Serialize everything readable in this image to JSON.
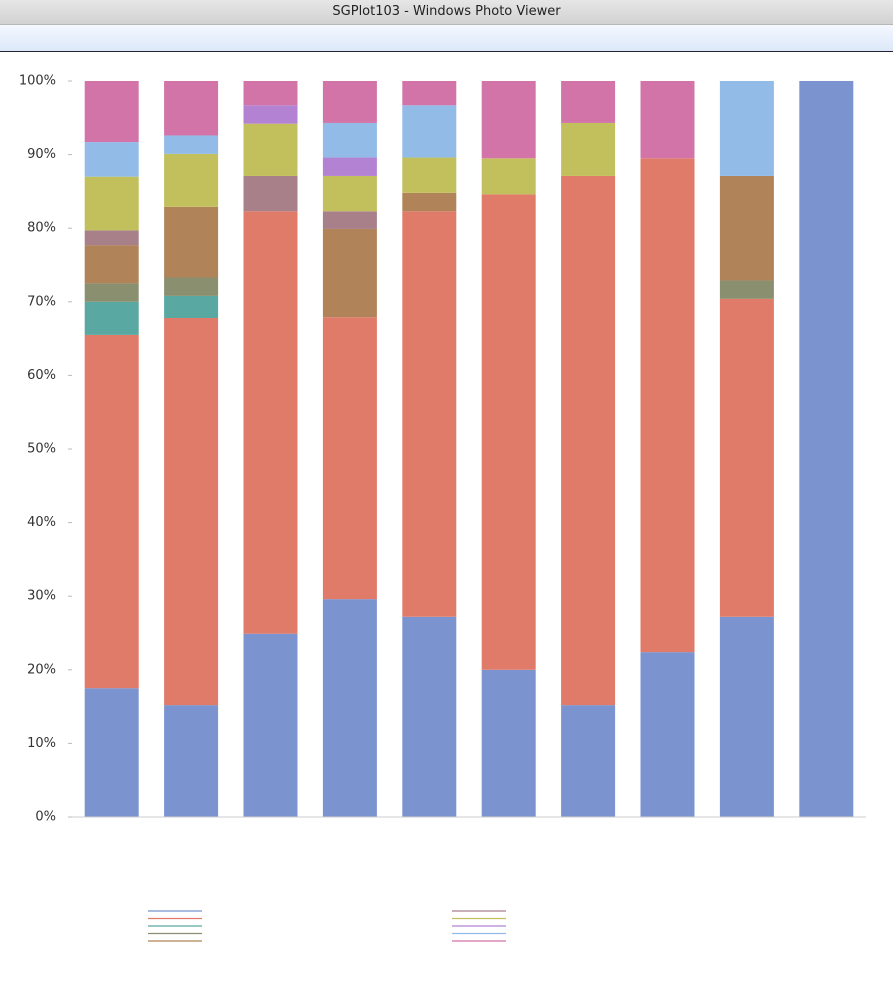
{
  "window_title": "SGPlot103 - Windows Photo Viewer",
  "chart_data": {
    "type": "bar",
    "stacked": true,
    "categories": [
      null,
      null,
      null,
      null,
      null,
      null,
      null,
      null,
      null,
      null
    ],
    "series": [
      {
        "color": "#7b93cf",
        "values": [
          17.5,
          15.2,
          24.9,
          29.6,
          27.2,
          20,
          15.2,
          22.4,
          27.2,
          100
        ]
      },
      {
        "color": "#e07b6a",
        "values": [
          48,
          52.6,
          57.4,
          38.3,
          55.1,
          64.6,
          71.9,
          67.1,
          43.2,
          0
        ]
      },
      {
        "color": "#5aa8a2",
        "values": [
          4.5,
          3,
          0,
          0,
          0,
          0,
          0,
          0,
          0,
          0
        ]
      },
      {
        "color": "#8a8f70",
        "values": [
          2.5,
          2.5,
          0,
          0,
          0,
          0,
          0,
          0,
          2.5,
          0
        ]
      },
      {
        "color": "#b08458",
        "values": [
          5.2,
          9.6,
          0,
          12,
          2.5,
          0,
          0,
          0,
          14.2,
          0
        ]
      },
      {
        "color": "#a8808a",
        "values": [
          2,
          0,
          4.8,
          2.4,
          0,
          0,
          0,
          0,
          0,
          0
        ]
      },
      {
        "color": "#c2c05c",
        "values": [
          7.3,
          7.2,
          7.1,
          4.8,
          4.8,
          4.9,
          7.2,
          0,
          0,
          0
        ]
      },
      {
        "color": "#b482d2",
        "values": [
          0,
          0,
          2.5,
          2.5,
          0,
          0,
          0,
          0,
          0,
          0
        ]
      },
      {
        "color": "#92bbe8",
        "values": [
          4.7,
          2.5,
          0,
          4.7,
          7.1,
          0,
          0,
          0,
          12.9,
          0
        ]
      },
      {
        "color": "#d274a8",
        "values": [
          8.3,
          7.4,
          3.3,
          5.7,
          3.3,
          10.5,
          5.7,
          10.5,
          0,
          0
        ]
      }
    ],
    "ylim": [
      0,
      100
    ],
    "yticks": [
      {
        "value": 0,
        "label": "0%"
      },
      {
        "value": 10,
        "label": "10%"
      },
      {
        "value": 20,
        "label": "20%"
      },
      {
        "value": 30,
        "label": "30%"
      },
      {
        "value": 40,
        "label": "40%"
      },
      {
        "value": 50,
        "label": "50%"
      },
      {
        "value": 60,
        "label": "60%"
      },
      {
        "value": 70,
        "label": "70%"
      },
      {
        "value": 80,
        "label": "80%"
      },
      {
        "value": 90,
        "label": "90%"
      },
      {
        "value": 100,
        "label": "100%"
      }
    ]
  }
}
